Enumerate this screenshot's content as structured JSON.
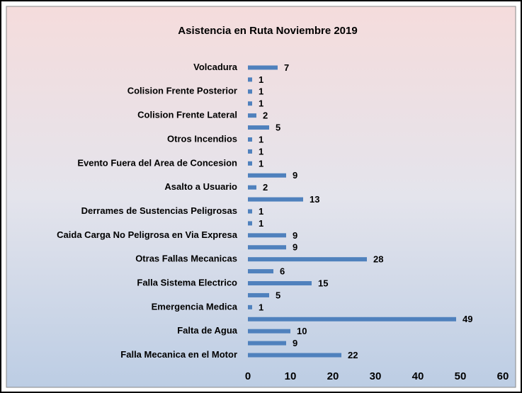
{
  "chart_data": {
    "type": "bar",
    "orientation": "horizontal",
    "title": "Asistencia en Ruta Noviembre 2019",
    "categories": [
      "Volcadura",
      null,
      "Colision Frente Posterior",
      null,
      "Colision Frente  Lateral",
      null,
      "Otros Incendios",
      null,
      "Evento Fuera del Area de Concesion",
      null,
      "Asalto a Usuario",
      null,
      "Derrames de Sustencias Peligrosas",
      null,
      "Caida Carga No Peligrosa en Via Expresa",
      null,
      "Otras Fallas Mecanicas",
      null,
      "Falla Sistema Electrico",
      null,
      "Emergencia Medica",
      null,
      "Falta de Agua",
      null,
      "Falla Mecanica en el Motor"
    ],
    "values": [
      7,
      1,
      1,
      1,
      2,
      5,
      1,
      1,
      1,
      9,
      2,
      13,
      1,
      1,
      9,
      9,
      28,
      6,
      15,
      5,
      1,
      49,
      10,
      9,
      22
    ],
    "color": "#4f81bd",
    "xlim": [
      0,
      60
    ],
    "xticks": [
      0,
      10,
      20,
      30,
      40,
      50,
      60
    ],
    "grid": false
  }
}
